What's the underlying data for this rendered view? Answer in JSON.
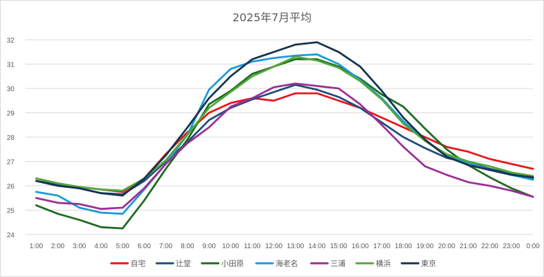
{
  "chart_data": {
    "type": "line",
    "title": "2025年7月平均",
    "xlabel": "",
    "ylabel": "",
    "ylim": [
      24,
      32
    ],
    "yticks": [
      24,
      25,
      26,
      27,
      28,
      29,
      30,
      31,
      32
    ],
    "grid": "horizontal",
    "legend": "bottom",
    "categories": [
      "1:00",
      "2:00",
      "3:00",
      "4:00",
      "5:00",
      "6:00",
      "7:00",
      "8:00",
      "9:00",
      "10:00",
      "11:00",
      "12:00",
      "13:00",
      "14:00",
      "15:00",
      "16:00",
      "17:00",
      "18:00",
      "19:00",
      "20:00",
      "21:00",
      "22:00",
      "23:00",
      "0:00"
    ],
    "series": [
      {
        "name": "自宅",
        "color": "#e8161b",
        "values": [
          26.3,
          26.1,
          25.95,
          25.85,
          25.75,
          26.3,
          27.3,
          28.2,
          29.0,
          29.4,
          29.6,
          29.5,
          29.8,
          29.8,
          29.5,
          29.2,
          28.8,
          28.4,
          28.0,
          27.6,
          27.4,
          27.1,
          26.9,
          26.7
        ]
      },
      {
        "name": "辻堂",
        "color": "#1f4e79",
        "values": [
          26.2,
          26.05,
          25.9,
          25.7,
          25.65,
          26.2,
          27.0,
          27.8,
          28.7,
          29.2,
          29.55,
          29.85,
          30.15,
          29.95,
          29.65,
          29.2,
          28.6,
          28.0,
          27.55,
          27.15,
          26.95,
          26.7,
          26.5,
          26.3
        ]
      },
      {
        "name": "小田原",
        "color": "#1e6b1e",
        "values": [
          25.2,
          24.85,
          24.6,
          24.3,
          24.25,
          25.4,
          26.7,
          27.9,
          29.35,
          29.9,
          30.6,
          30.9,
          31.2,
          31.2,
          30.9,
          30.4,
          29.75,
          29.25,
          28.35,
          27.5,
          26.85,
          26.35,
          25.9,
          25.55
        ]
      },
      {
        "name": "海老名",
        "color": "#1c9ad6",
        "values": [
          25.75,
          25.6,
          25.1,
          24.9,
          24.85,
          25.85,
          26.9,
          28.1,
          29.95,
          30.8,
          31.1,
          31.25,
          31.35,
          31.4,
          31.0,
          30.35,
          29.6,
          28.65,
          27.85,
          27.25,
          26.95,
          26.65,
          26.45,
          26.25
        ]
      },
      {
        "name": "三浦",
        "color": "#9b3094",
        "values": [
          25.5,
          25.3,
          25.25,
          25.05,
          25.1,
          25.9,
          26.9,
          27.75,
          28.4,
          29.25,
          29.6,
          30.05,
          30.2,
          30.1,
          30.0,
          29.35,
          28.5,
          27.6,
          26.8,
          26.45,
          26.15,
          26.0,
          25.8,
          25.55
        ]
      },
      {
        "name": "横浜",
        "color": "#52a83a",
        "values": [
          26.3,
          26.1,
          25.95,
          25.85,
          25.8,
          26.3,
          27.05,
          28.1,
          29.2,
          29.85,
          30.5,
          30.9,
          31.3,
          31.15,
          30.85,
          30.3,
          29.55,
          28.55,
          27.85,
          27.3,
          27.0,
          26.8,
          26.55,
          26.4
        ]
      },
      {
        "name": "東京",
        "color": "#14344f",
        "values": [
          26.2,
          26.0,
          25.9,
          25.7,
          25.6,
          26.3,
          27.25,
          28.4,
          29.6,
          30.5,
          31.2,
          31.5,
          31.8,
          31.9,
          31.5,
          30.9,
          29.9,
          28.8,
          27.9,
          27.2,
          26.85,
          26.65,
          26.45,
          26.35
        ]
      }
    ]
  }
}
